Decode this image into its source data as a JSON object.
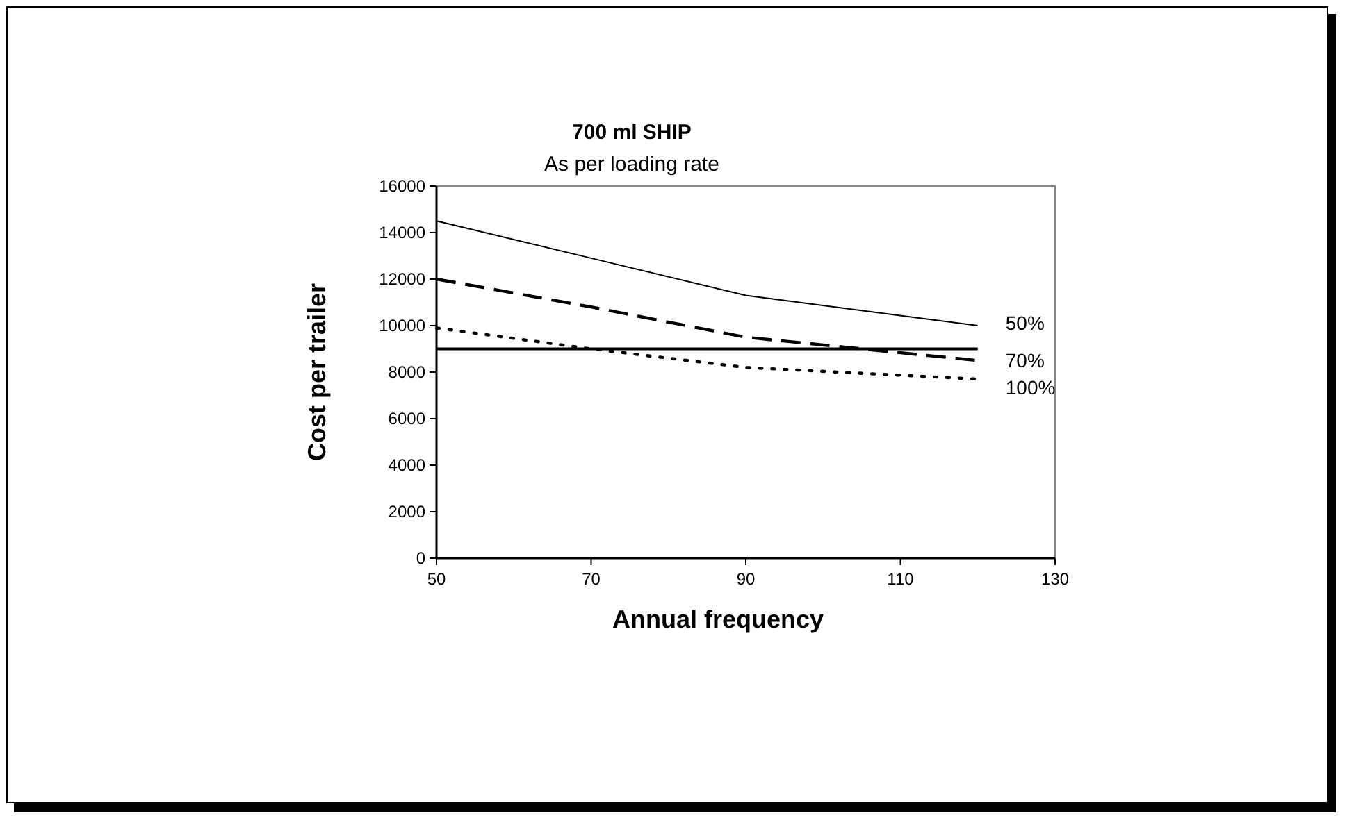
{
  "chart_data": {
    "type": "line",
    "title": "700 ml SHIP",
    "subtitle": "As per loading rate",
    "xlabel": "Annual frequency",
    "ylabel": "Cost per trailer",
    "x": [
      50,
      70,
      90,
      120
    ],
    "xlim": [
      50,
      130
    ],
    "xticks": [
      50,
      70,
      90,
      110,
      130
    ],
    "ylim": [
      0,
      16000
    ],
    "yticks": [
      0,
      2000,
      4000,
      6000,
      8000,
      10000,
      12000,
      14000,
      16000
    ],
    "grid": false,
    "series": [
      {
        "name": "50%",
        "color": "#000000",
        "line_style": "solid",
        "values": [
          14500,
          12900,
          11300,
          10000
        ]
      },
      {
        "name": "70%",
        "color": "#000000",
        "line_style": "dashed",
        "values": [
          12000,
          10800,
          9500,
          8500
        ]
      },
      {
        "name": "100%",
        "color": "#000000",
        "line_style": "dotted",
        "values": [
          9900,
          9000,
          8200,
          7700
        ]
      },
      {
        "color": "#000000",
        "line_style": "solid",
        "values": [
          9000,
          9000,
          9000,
          9000
        ]
      }
    ]
  }
}
